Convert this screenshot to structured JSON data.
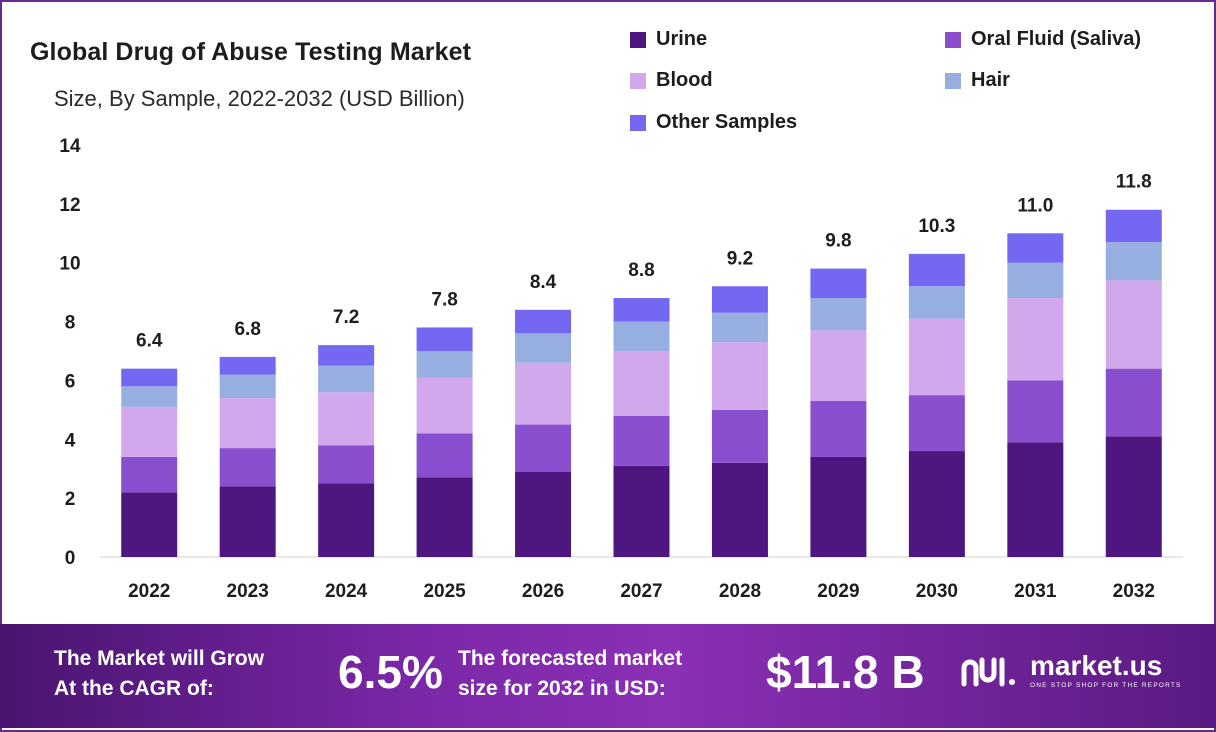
{
  "header": {
    "title": "Global Drug of Abuse Testing Market",
    "subtitle": "Size, By Sample, 2022-2032 (USD Billion)"
  },
  "legend": [
    {
      "label": "Urine",
      "color": "#4e1780"
    },
    {
      "label": "Oral Fluid (Saliva)",
      "color": "#8a4fcf"
    },
    {
      "label": "Blood",
      "color": "#d2a8ec"
    },
    {
      "label": "Hair",
      "color": "#97aee0"
    },
    {
      "label": "Other Samples",
      "color": "#7468f2"
    }
  ],
  "footer": {
    "cagr_label_line1": "The Market will Grow",
    "cagr_label_line2": "At the CAGR of:",
    "cagr_value": "6.5%",
    "forecast_label_line1": "The forecasted market",
    "forecast_label_line2": "size for 2032 in USD:",
    "forecast_value": "$11.8 B",
    "logo_text": "market.us",
    "logo_tagline": "ONE STOP SHOP FOR THE REPORTS"
  },
  "chart_data": {
    "type": "bar",
    "stacked": true,
    "title": "Global Drug of Abuse Testing Market",
    "subtitle": "Size, By Sample, 2022-2032 (USD Billion)",
    "categories": [
      "2022",
      "2023",
      "2024",
      "2025",
      "2026",
      "2027",
      "2028",
      "2029",
      "2030",
      "2031",
      "2032"
    ],
    "totals": [
      6.4,
      6.8,
      7.2,
      7.8,
      8.4,
      8.8,
      9.2,
      9.8,
      10.3,
      11.0,
      11.8
    ],
    "total_labels": [
      "6.4",
      "6.8",
      "7.2",
      "7.8",
      "8.4",
      "8.8",
      "9.2",
      "9.8",
      "10.3",
      "11.0",
      "11.8"
    ],
    "series": [
      {
        "name": "Urine",
        "color": "#4e1780",
        "values": [
          2.2,
          2.4,
          2.5,
          2.7,
          2.9,
          3.1,
          3.2,
          3.4,
          3.6,
          3.9,
          4.1
        ]
      },
      {
        "name": "Oral Fluid (Saliva)",
        "color": "#8a4fcf",
        "values": [
          1.2,
          1.3,
          1.3,
          1.5,
          1.6,
          1.7,
          1.8,
          1.9,
          1.9,
          2.1,
          2.3
        ]
      },
      {
        "name": "Blood",
        "color": "#d2a8ec",
        "values": [
          1.7,
          1.7,
          1.8,
          1.9,
          2.1,
          2.2,
          2.3,
          2.4,
          2.6,
          2.8,
          3.0
        ]
      },
      {
        "name": "Hair",
        "color": "#97aee0",
        "values": [
          0.7,
          0.8,
          0.9,
          0.9,
          1.0,
          1.0,
          1.0,
          1.1,
          1.1,
          1.2,
          1.3
        ]
      },
      {
        "name": "Other Samples",
        "color": "#7468f2",
        "values": [
          0.6,
          0.6,
          0.7,
          0.8,
          0.8,
          0.8,
          0.9,
          1.0,
          1.1,
          1.0,
          1.1
        ]
      }
    ],
    "yticks": [
      "0",
      "2",
      "4",
      "6",
      "8",
      "10",
      "12",
      "14"
    ],
    "ylim": [
      0,
      14
    ],
    "grid": false,
    "legend_position": "top-right"
  }
}
